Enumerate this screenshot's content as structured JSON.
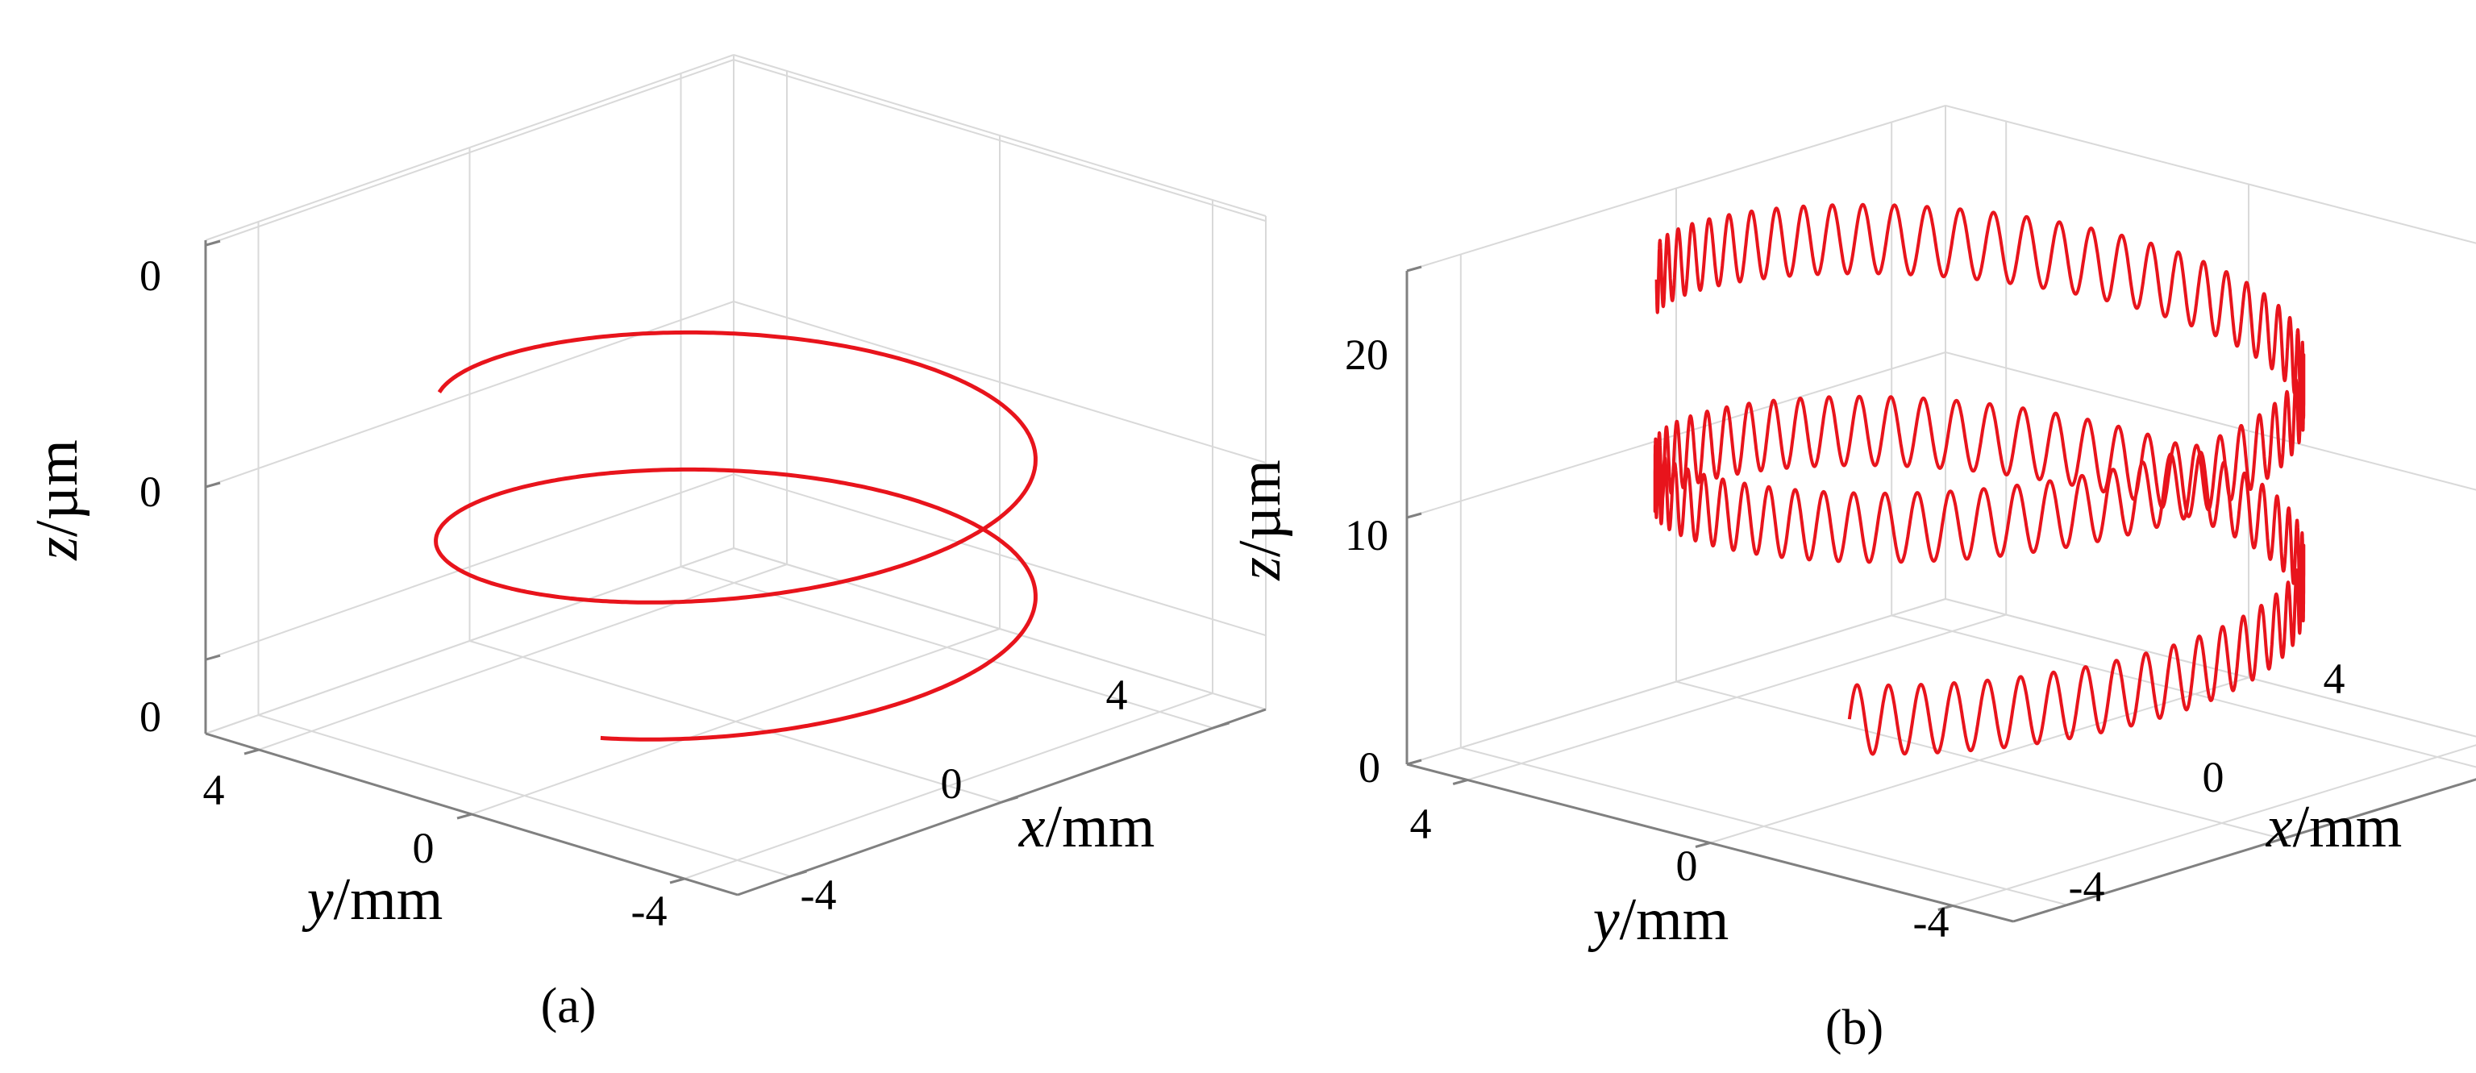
{
  "chart_data": [
    {
      "type": "line",
      "caption": "(a)",
      "xlabel": {
        "var": "x",
        "unit": "/mm"
      },
      "ylabel": {
        "var": "y",
        "unit": "/mm"
      },
      "zlabel": {
        "var": "z",
        "unit": "/µm"
      },
      "xticks": [
        "-4",
        "0",
        "4"
      ],
      "yticks": [
        "4",
        "0",
        "-4"
      ],
      "zticks": [
        "0",
        "0",
        "0"
      ],
      "xlim": [
        -5,
        5
      ],
      "ylim": [
        -5,
        5
      ],
      "zlim": [
        0,
        20
      ],
      "grid": true,
      "series": [
        {
          "color": "#e8141c",
          "shape": "helix",
          "radius": 4,
          "z_start": 3,
          "z_end": 13,
          "turns": 1.8,
          "ripple_cycles": 0,
          "ripple_amplitude": 0
        }
      ]
    },
    {
      "type": "line",
      "caption": "(b)",
      "xlabel": {
        "var": "x",
        "unit": "/mm"
      },
      "ylabel": {
        "var": "y",
        "unit": "/mm"
      },
      "zlabel": {
        "var": "z",
        "unit": "/µm"
      },
      "xticks": [
        "-4",
        "0",
        "4"
      ],
      "yticks": [
        "4",
        "0",
        "-4"
      ],
      "zticks": [
        "0",
        "10",
        "20"
      ],
      "xlim": [
        -5,
        5
      ],
      "ylim": [
        -5,
        5
      ],
      "zlim": [
        0,
        20
      ],
      "grid": true,
      "series": [
        {
          "color": "#e8141c",
          "shape": "helix-with-ripple",
          "radius": 4,
          "z_start": 5,
          "z_end": 19,
          "turns": 1.8,
          "ripple_cycles": 110,
          "ripple_amplitude": 1.4
        }
      ]
    }
  ]
}
